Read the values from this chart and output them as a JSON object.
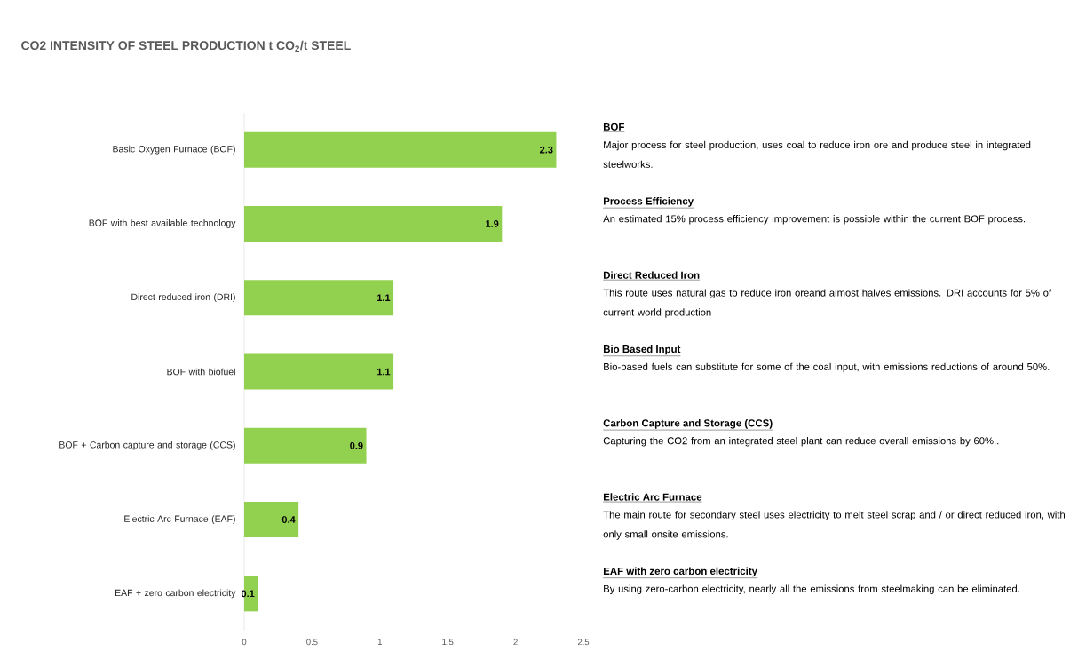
{
  "chart_data": {
    "type": "bar",
    "orientation": "horizontal",
    "title": "CO2 INTENSITY OF STEEL PRODUCTION t CO$_{2}$/t STEEL",
    "categories": [
      "Basic Oxygen Furnace (BOF)",
      "BOF with best available technology",
      "Direct reduced iron (DRI)",
      "BOF with biofuel",
      "BOF + Carbon capture and storage (CCS)",
      "Electric Arc Furnace (EAF)",
      "EAF + zero carbon electricity"
    ],
    "values": [
      2.3,
      1.9,
      1.1,
      1.1,
      0.9,
      0.4,
      0.1
    ],
    "color": "#92d050",
    "data_labels": true,
    "xlim": [
      0,
      2.5
    ],
    "xticks": [
      0,
      0.5,
      1,
      1.5,
      2,
      2.5
    ],
    "annotations": [
      "BOF",
      "Major process for steel production, uses coal to reduce iron ore and produce steel in integrated steelworks.",
      "Process Efficiency",
      "An estimated 15% process efficiency improvement is possible within the current BOF process.",
      "Direct Reduced Iron",
      "This route uses natural gas to reduce iron oreand almost halves emissions. DRI accounts for 5% of current world production",
      "Bio Based Input",
      "Bio-based fuels can substitute for some of the coal input, with emissions reductions of around 50%.",
      "Carbon Capture and Storage (CCS)",
      "Capturing the CO2 from an integrated steel plant can reduce overall emissions by 60%..",
      "Electric Arc Furnace",
      "The main route for secondary steel uses electricity to melt steel scrap and / or direct reduced iron, with only small onsite emissions.",
      "EAF with zero carbon electricity",
      "By using zero-carbon electricity, nearly all the emissions from steelmaking can be eliminated."
    ]
  }
}
